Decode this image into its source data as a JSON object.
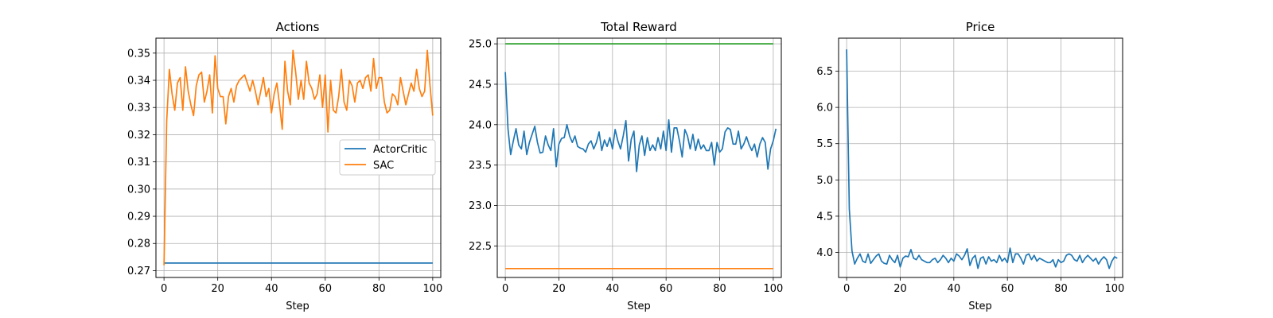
{
  "chart_data": [
    {
      "type": "line",
      "title": "Actions",
      "xlabel": "Step",
      "ylabel": "",
      "xlim": [
        -3,
        103
      ],
      "ylim": [
        0.2675,
        0.3555
      ],
      "xticks": [
        0,
        20,
        40,
        60,
        80,
        100
      ],
      "yticks": [
        0.27,
        0.28,
        0.29,
        0.3,
        0.31,
        0.32,
        0.33,
        0.34,
        0.35
      ],
      "ytick_labels": [
        "0.27",
        "0.28",
        "0.29",
        "0.30",
        "0.31",
        "0.32",
        "0.33",
        "0.34",
        "0.35"
      ],
      "grid": true,
      "legend": "center-right",
      "series": [
        {
          "name": "ActorCritic",
          "color": "#1f77b4",
          "constant": 0.2728
        },
        {
          "name": "SAC",
          "color": "#ff7f0e",
          "values": [
            0.272,
            0.325,
            0.344,
            0.335,
            0.329,
            0.339,
            0.341,
            0.329,
            0.345,
            0.336,
            0.331,
            0.327,
            0.338,
            0.342,
            0.343,
            0.332,
            0.336,
            0.342,
            0.328,
            0.349,
            0.337,
            0.334,
            0.334,
            0.324,
            0.334,
            0.337,
            0.332,
            0.338,
            0.34,
            0.341,
            0.342,
            0.339,
            0.336,
            0.34,
            0.336,
            0.331,
            0.336,
            0.341,
            0.334,
            0.337,
            0.328,
            0.335,
            0.339,
            0.331,
            0.322,
            0.347,
            0.336,
            0.331,
            0.351,
            0.343,
            0.333,
            0.34,
            0.333,
            0.347,
            0.339,
            0.337,
            0.333,
            0.335,
            0.342,
            0.33,
            0.342,
            0.321,
            0.34,
            0.329,
            0.328,
            0.334,
            0.344,
            0.332,
            0.329,
            0.34,
            0.338,
            0.332,
            0.339,
            0.34,
            0.337,
            0.341,
            0.342,
            0.336,
            0.348,
            0.337,
            0.341,
            0.341,
            0.332,
            0.328,
            0.329,
            0.335,
            0.334,
            0.331,
            0.341,
            0.336,
            0.331,
            0.335,
            0.339,
            0.336,
            0.344,
            0.337,
            0.334,
            0.336,
            0.351,
            0.338,
            0.327
          ]
        }
      ]
    },
    {
      "type": "line",
      "title": "Total Reward",
      "xlabel": "Step",
      "ylabel": "",
      "xlim": [
        -3,
        103
      ],
      "ylim": [
        22.11,
        25.07
      ],
      "xticks": [
        0,
        20,
        40,
        60,
        80,
        100
      ],
      "yticks": [
        22.5,
        23.0,
        23.5,
        24.0,
        24.5,
        25.0
      ],
      "ytick_labels": [
        "22.5",
        "23.0",
        "23.5",
        "24.0",
        "24.5",
        "25.0"
      ],
      "grid": true,
      "series": [
        {
          "color": "#1f77b4",
          "values": [
            24.65,
            23.95,
            23.63,
            23.8,
            23.95,
            23.75,
            23.7,
            23.92,
            23.63,
            23.78,
            23.88,
            23.98,
            23.78,
            23.65,
            23.66,
            23.86,
            23.75,
            23.68,
            23.95,
            23.48,
            23.76,
            23.83,
            23.84,
            24.0,
            23.86,
            23.78,
            23.86,
            23.73,
            23.71,
            23.7,
            23.66,
            23.76,
            23.8,
            23.7,
            23.78,
            23.91,
            23.68,
            23.81,
            23.73,
            23.84,
            23.7,
            23.94,
            23.8,
            23.7,
            23.86,
            24.05,
            23.55,
            23.82,
            23.92,
            23.42,
            23.75,
            23.86,
            23.62,
            23.84,
            23.68,
            23.75,
            23.68,
            23.84,
            23.7,
            23.92,
            23.68,
            24.06,
            23.66,
            23.96,
            23.96,
            23.8,
            23.6,
            23.94,
            23.86,
            23.7,
            23.88,
            23.68,
            23.82,
            23.7,
            23.75,
            23.68,
            23.68,
            23.78,
            23.5,
            23.78,
            23.66,
            23.7,
            23.91,
            23.96,
            23.94,
            23.76,
            23.76,
            23.92,
            23.7,
            23.76,
            23.85,
            23.75,
            23.68,
            23.76,
            23.6,
            23.76,
            23.84,
            23.78,
            23.45,
            23.7,
            23.8,
            23.95
          ]
        },
        {
          "color": "#ff7f0e",
          "constant": 22.22
        },
        {
          "color": "#2ca02c",
          "constant": 25.0
        }
      ]
    },
    {
      "type": "line",
      "title": "Price",
      "xlabel": "Step",
      "ylabel": "",
      "xlim": [
        -3,
        103
      ],
      "ylim": [
        3.655,
        6.955
      ],
      "xticks": [
        0,
        20,
        40,
        60,
        80,
        100
      ],
      "yticks": [
        4.0,
        4.5,
        5.0,
        5.5,
        6.0,
        6.5
      ],
      "ytick_labels": [
        "4.0",
        "4.5",
        "5.0",
        "5.5",
        "6.0",
        "6.5"
      ],
      "grid": true,
      "series": [
        {
          "color": "#1f77b4",
          "values": [
            6.8,
            4.6,
            4.02,
            3.84,
            3.92,
            3.98,
            3.88,
            3.86,
            3.98,
            3.85,
            3.9,
            3.95,
            3.98,
            3.88,
            3.85,
            3.84,
            3.96,
            3.9,
            3.86,
            3.96,
            3.8,
            3.92,
            3.95,
            3.94,
            4.04,
            3.92,
            3.9,
            3.96,
            3.9,
            3.88,
            3.86,
            3.86,
            3.9,
            3.92,
            3.86,
            3.9,
            3.96,
            3.92,
            3.86,
            3.92,
            3.88,
            3.98,
            3.95,
            3.9,
            3.96,
            4.05,
            3.82,
            3.92,
            3.96,
            3.78,
            3.92,
            3.94,
            3.84,
            3.94,
            3.88,
            3.9,
            3.86,
            3.96,
            3.88,
            3.92,
            3.86,
            4.06,
            3.86,
            3.98,
            3.98,
            3.92,
            3.84,
            3.96,
            3.98,
            3.9,
            3.96,
            3.88,
            3.92,
            3.9,
            3.88,
            3.86,
            3.86,
            3.9,
            3.8,
            3.9,
            3.86,
            3.88,
            3.96,
            3.98,
            3.96,
            3.9,
            3.88,
            3.96,
            3.86,
            3.92,
            3.96,
            3.92,
            3.88,
            3.92,
            3.84,
            3.9,
            3.94,
            3.9,
            3.78,
            3.88,
            3.94,
            3.92
          ]
        }
      ]
    }
  ]
}
